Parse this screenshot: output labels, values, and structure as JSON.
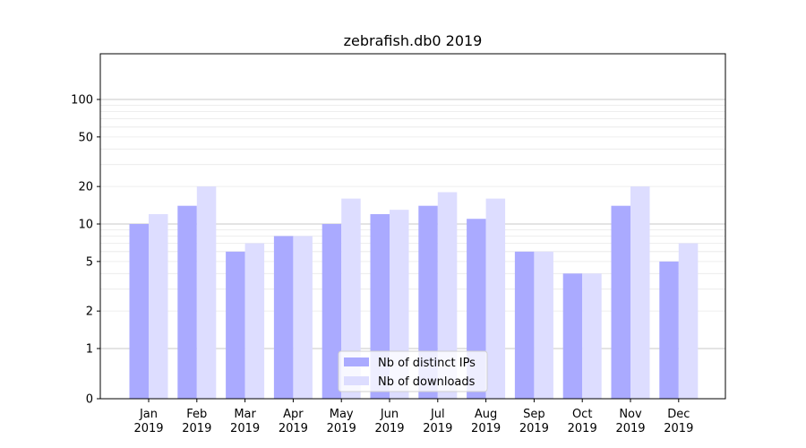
{
  "chart_data": {
    "type": "bar",
    "title": "zebrafish.db0 2019",
    "xlabel": "",
    "ylabel": "",
    "yscale": "symlog",
    "ylim": [
      0,
      120
    ],
    "yticks": [
      0,
      1,
      2,
      5,
      10,
      20,
      50,
      100
    ],
    "grid": "horizontal",
    "legend_position": "bottom-center",
    "categories": [
      "Jan\n2019",
      "Feb\n2019",
      "Mar\n2019",
      "Apr\n2019",
      "May\n2019",
      "Jun\n2019",
      "Jul\n2019",
      "Aug\n2019",
      "Sep\n2019",
      "Oct\n2019",
      "Nov\n2019",
      "Dec\n2019"
    ],
    "series": [
      {
        "name": "Nb of distinct IPs",
        "color": "#aaaaff",
        "values": [
          10,
          14,
          6,
          8,
          10,
          12,
          14,
          11,
          6,
          4,
          14,
          5
        ]
      },
      {
        "name": "Nb of downloads",
        "color": "#ddddff",
        "values": [
          12,
          20,
          7,
          8,
          16,
          13,
          18,
          16,
          6,
          4,
          20,
          7
        ]
      }
    ]
  }
}
